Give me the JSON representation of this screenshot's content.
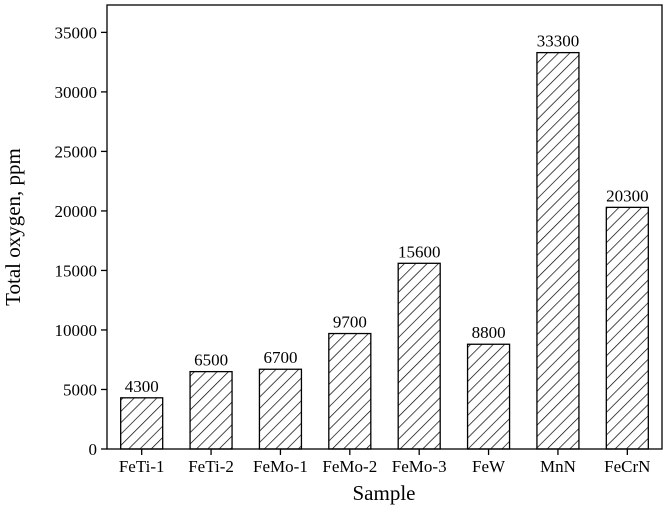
{
  "chart_data": {
    "type": "bar",
    "x_label": "Sample",
    "y_label": "Total oxygen, ppm",
    "categories": [
      "FeTi-1",
      "FeTi-2",
      "FeMo-1",
      "FeMo-2",
      "FeMo-3",
      "FeW",
      "MnN",
      "FeCrN"
    ],
    "values": [
      4300,
      6500,
      6700,
      9700,
      15600,
      8800,
      33300,
      20300
    ],
    "color": "#000000",
    "ylim": [
      0,
      37300
    ],
    "yticks": [
      0,
      5000,
      10000,
      15000,
      20000,
      25000,
      30000,
      35000
    ],
    "grid": false
  }
}
